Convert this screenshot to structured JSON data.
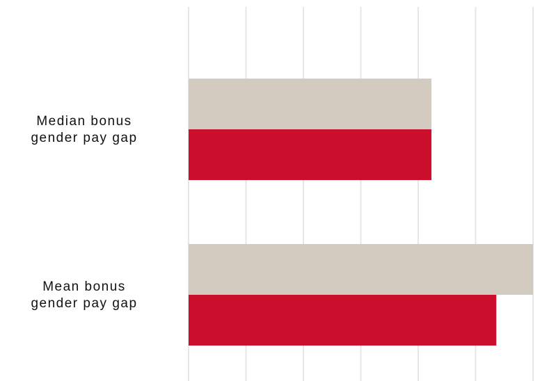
{
  "chart_data": {
    "type": "bar",
    "orientation": "horizontal",
    "categories": [
      [
        "Median bonus",
        "gender pay gap"
      ],
      [
        "Mean bonus",
        "gender pay gap"
      ]
    ],
    "series": [
      {
        "values": [
          42.3,
          60.0
        ],
        "color": "#d3cbc0"
      },
      {
        "values": [
          42.3,
          53.6
        ],
        "color": "#cc0f2c"
      }
    ],
    "xlim": [
      0,
      60
    ],
    "grid": true,
    "gridline_count": 6,
    "legend": "none",
    "xlabel": "",
    "ylabel": ""
  }
}
